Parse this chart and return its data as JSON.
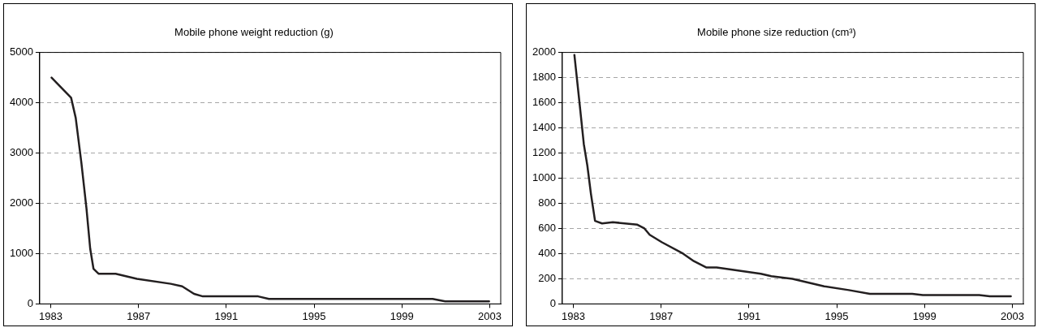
{
  "chart_data": [
    {
      "type": "line",
      "title": "Mobile phone weight reduction (g)",
      "grid": "y",
      "legend": false,
      "marker": "none",
      "line_style": "solid",
      "xlim": [
        1982.5,
        2003.5
      ],
      "ylim": [
        0,
        5000
      ],
      "yticks": [
        0,
        1000,
        2000,
        3000,
        4000,
        5000
      ],
      "xticks": [
        1983,
        1987,
        1991,
        1995,
        1999,
        2003
      ],
      "series": [
        {
          "color": "#231f20",
          "x": [
            1983.04,
            1983.93,
            1984.14,
            1984.4,
            1984.63,
            1984.8,
            1984.95,
            1985.18,
            1985.8,
            1985.96,
            1986.93,
            1988.47,
            1988.99,
            1989.53,
            1989.93,
            1991.96,
            1992.45,
            1992.94,
            1995.45,
            1996.02,
            2000.4,
            2000.97,
            2002.97
          ],
          "values": [
            4500,
            4100,
            3700,
            2800,
            1900,
            1100,
            700,
            600,
            600,
            600,
            500,
            400,
            350,
            200,
            150,
            150,
            150,
            100,
            100,
            100,
            100,
            50,
            50
          ]
        }
      ]
    },
    {
      "type": "line",
      "title": "Mobile phone size reduction (cm³)",
      "grid": "y",
      "legend": false,
      "marker": "none",
      "line_style": "solid",
      "xlim": [
        1982.5,
        2003.5
      ],
      "ylim": [
        0,
        2000
      ],
      "yticks": [
        0,
        200,
        400,
        600,
        800,
        1000,
        1200,
        1400,
        1600,
        1800,
        2000
      ],
      "xticks": [
        1983,
        1987,
        1991,
        1995,
        1999,
        2003
      ],
      "series": [
        {
          "color": "#231f20",
          "x": [
            1983.05,
            1983.27,
            1983.48,
            1983.64,
            1983.8,
            1983.99,
            1984.31,
            1984.8,
            1985.92,
            1986.24,
            1986.48,
            1987.04,
            1988.0,
            1988.49,
            1989.05,
            1989.53,
            1991.54,
            1992.02,
            1992.98,
            1994.43,
            1995.55,
            1996.51,
            1998.44,
            1998.92,
            2001.49,
            2001.97,
            2002.93
          ],
          "values": [
            1980,
            1620,
            1270,
            1100,
            880,
            660,
            640,
            650,
            630,
            600,
            550,
            490,
            400,
            340,
            290,
            290,
            240,
            220,
            200,
            140,
            110,
            80,
            80,
            70,
            70,
            60,
            60
          ]
        }
      ]
    }
  ]
}
